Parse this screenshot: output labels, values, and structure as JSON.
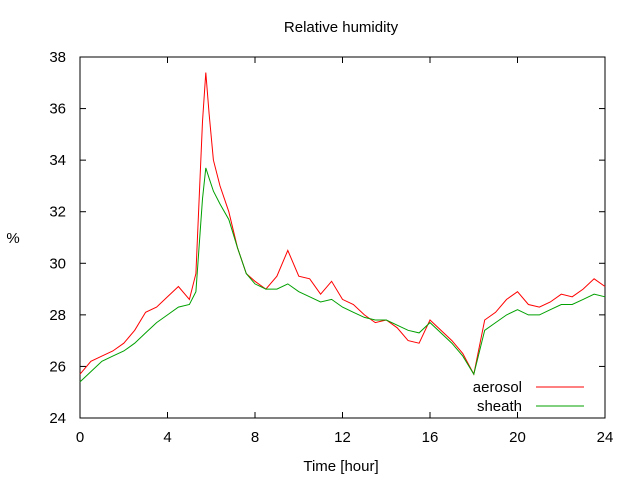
{
  "chart_data": {
    "type": "line",
    "title": "Relative humidity",
    "xlabel": "Time [hour]",
    "ylabel": "%",
    "xlim": [
      0,
      24
    ],
    "ylim": [
      24,
      38
    ],
    "x_ticks": [
      0,
      4,
      8,
      12,
      16,
      20,
      24
    ],
    "y_ticks": [
      24,
      26,
      28,
      30,
      32,
      34,
      36,
      38
    ],
    "grid": false,
    "legend_position": "bottom-right",
    "series": [
      {
        "name": "aerosol",
        "color": "#ff0000",
        "x": [
          0,
          0.5,
          1,
          1.5,
          2,
          2.5,
          3,
          3.5,
          4,
          4.5,
          5,
          5.3,
          5.6,
          5.75,
          5.9,
          6.1,
          6.4,
          6.8,
          7.2,
          7.6,
          8,
          8.5,
          9,
          9.5,
          10,
          10.5,
          11,
          11.5,
          12,
          12.5,
          13,
          13.5,
          14,
          14.5,
          15,
          15.5,
          16,
          16.5,
          17,
          17.5,
          18,
          18.5,
          19,
          19.5,
          20,
          20.5,
          21,
          21.5,
          22,
          22.5,
          23,
          23.5,
          24
        ],
        "y": [
          25.7,
          26.2,
          26.4,
          26.6,
          26.9,
          27.4,
          28.1,
          28.3,
          28.7,
          29.1,
          28.6,
          29.6,
          35.5,
          37.4,
          35.8,
          34.0,
          33.0,
          32.0,
          30.6,
          29.6,
          29.3,
          29.0,
          29.5,
          30.5,
          29.5,
          29.4,
          28.8,
          29.3,
          28.6,
          28.4,
          28.0,
          27.7,
          27.8,
          27.5,
          27.0,
          26.9,
          27.8,
          27.4,
          27.0,
          26.5,
          25.7,
          27.8,
          28.1,
          28.6,
          28.9,
          28.4,
          28.3,
          28.5,
          28.8,
          28.7,
          29.0,
          29.4,
          29.1
        ]
      },
      {
        "name": "sheath",
        "color": "#00a000",
        "x": [
          0,
          0.5,
          1,
          1.5,
          2,
          2.5,
          3,
          3.5,
          4,
          4.5,
          5,
          5.3,
          5.6,
          5.75,
          5.9,
          6.1,
          6.4,
          6.8,
          7.2,
          7.6,
          8,
          8.5,
          9,
          9.5,
          10,
          10.5,
          11,
          11.5,
          12,
          12.5,
          13,
          13.5,
          14,
          14.5,
          15,
          15.5,
          16,
          16.5,
          17,
          17.5,
          18,
          18.5,
          19,
          19.5,
          20,
          20.5,
          21,
          21.5,
          22,
          22.5,
          23,
          23.5,
          24
        ],
        "y": [
          25.4,
          25.8,
          26.2,
          26.4,
          26.6,
          26.9,
          27.3,
          27.7,
          28.0,
          28.3,
          28.4,
          28.9,
          32.5,
          33.7,
          33.3,
          32.8,
          32.3,
          31.7,
          30.6,
          29.6,
          29.2,
          29.0,
          29.0,
          29.2,
          28.9,
          28.7,
          28.5,
          28.6,
          28.3,
          28.1,
          27.9,
          27.8,
          27.8,
          27.6,
          27.4,
          27.3,
          27.7,
          27.3,
          26.9,
          26.4,
          25.7,
          27.4,
          27.7,
          28.0,
          28.2,
          28.0,
          28.0,
          28.2,
          28.4,
          28.4,
          28.6,
          28.8,
          28.7
        ]
      }
    ]
  }
}
